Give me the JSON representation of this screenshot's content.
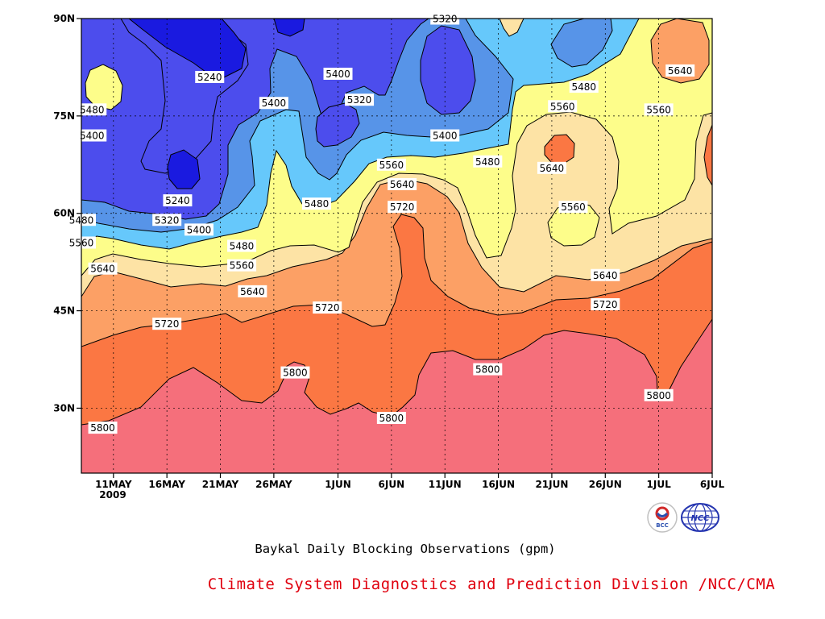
{
  "chart_data": {
    "type": "contour",
    "title": "Baykal Daily Blocking Observations (gpm)",
    "credit": "Climate System Diagnostics and Prediction Division /NCC/CMA",
    "year_label": "2009",
    "y_ticks": [
      {
        "value": 30,
        "label": "30N"
      },
      {
        "value": 45,
        "label": "45N"
      },
      {
        "value": 60,
        "label": "60N"
      },
      {
        "value": 75,
        "label": "75N"
      },
      {
        "value": 90,
        "label": "90N"
      }
    ],
    "x_ticks": [
      {
        "date": "2009-05-11",
        "label": "11MAY"
      },
      {
        "date": "2009-05-16",
        "label": "16MAY"
      },
      {
        "date": "2009-05-21",
        "label": "21MAY"
      },
      {
        "date": "2009-05-26",
        "label": "26MAY"
      },
      {
        "date": "2009-06-01",
        "label": "1JUN"
      },
      {
        "date": "2009-06-06",
        "label": "6JUN"
      },
      {
        "date": "2009-06-11",
        "label": "11JUN"
      },
      {
        "date": "2009-06-16",
        "label": "16JUN"
      },
      {
        "date": "2009-06-21",
        "label": "21JUN"
      },
      {
        "date": "2009-06-26",
        "label": "26JUN"
      },
      {
        "date": "2009-07-01",
        "label": "1JUL"
      },
      {
        "date": "2009-07-06",
        "label": "6JUL"
      }
    ],
    "xlim": [
      "2009-05-08",
      "2009-07-06"
    ],
    "ylim": [
      20,
      90
    ],
    "grid": true,
    "contour_levels": [
      5240,
      5320,
      5400,
      5480,
      5560,
      5640,
      5720,
      5800
    ],
    "level_colors": {
      "5800": "#f56f7b",
      "5720": "#fb7743",
      "5640": "#fca065",
      "5560": "#fde3a5",
      "5480": "#fdfd8a",
      "5400": "#66c8fb",
      "5320": "#5794e8",
      "5240": "#4c4ded",
      "below": "#1a1ae0"
    },
    "contour_labels": [
      {
        "value": 5240,
        "date": "2009-05-20",
        "lat": 81
      },
      {
        "value": 5240,
        "date": "2009-05-17",
        "lat": 62
      },
      {
        "value": 5320,
        "date": "2009-05-16",
        "lat": 59
      },
      {
        "value": 5320,
        "date": "2009-06-03",
        "lat": 77.5
      },
      {
        "value": 5320,
        "date": "2009-06-11",
        "lat": 90
      },
      {
        "value": 5400,
        "date": "2009-05-09",
        "lat": 72
      },
      {
        "value": 5400,
        "date": "2009-05-19",
        "lat": 57.5
      },
      {
        "value": 5400,
        "date": "2009-05-26",
        "lat": 77
      },
      {
        "value": 5400,
        "date": "2009-06-01",
        "lat": 81.5
      },
      {
        "value": 5400,
        "date": "2009-06-11",
        "lat": 72
      },
      {
        "value": 5480,
        "date": "2009-05-09",
        "lat": 76
      },
      {
        "value": 5480,
        "date": "2009-05-08",
        "lat": 59
      },
      {
        "value": 5480,
        "date": "2009-05-23",
        "lat": 55
      },
      {
        "value": 5480,
        "date": "2009-05-30",
        "lat": 61.5
      },
      {
        "value": 5480,
        "date": "2009-06-15",
        "lat": 68
      },
      {
        "value": 5480,
        "date": "2009-06-24",
        "lat": 79.5
      },
      {
        "value": 5560,
        "date": "2009-05-08",
        "lat": 55.5
      },
      {
        "value": 5560,
        "date": "2009-05-23",
        "lat": 52
      },
      {
        "value": 5560,
        "date": "2009-06-06",
        "lat": 67.5
      },
      {
        "value": 5560,
        "date": "2009-06-22",
        "lat": 76.5
      },
      {
        "value": 5560,
        "date": "2009-06-23",
        "lat": 61
      },
      {
        "value": 5560,
        "date": "2009-07-01",
        "lat": 76
      },
      {
        "value": 5640,
        "date": "2009-05-10",
        "lat": 51.5
      },
      {
        "value": 5640,
        "date": "2009-05-24",
        "lat": 48
      },
      {
        "value": 5640,
        "date": "2009-06-07",
        "lat": 64.5
      },
      {
        "value": 5640,
        "date": "2009-06-21",
        "lat": 67
      },
      {
        "value": 5640,
        "date": "2009-06-26",
        "lat": 50.5
      },
      {
        "value": 5640,
        "date": "2009-07-03",
        "lat": 82
      },
      {
        "value": 5720,
        "date": "2009-05-16",
        "lat": 43
      },
      {
        "value": 5720,
        "date": "2009-05-31",
        "lat": 45.5
      },
      {
        "value": 5720,
        "date": "2009-06-07",
        "lat": 61
      },
      {
        "value": 5720,
        "date": "2009-06-26",
        "lat": 46
      },
      {
        "value": 5800,
        "date": "2009-05-10",
        "lat": 27
      },
      {
        "value": 5800,
        "date": "2009-05-28",
        "lat": 35.5
      },
      {
        "value": 5800,
        "date": "2009-06-06",
        "lat": 28.5
      },
      {
        "value": 5800,
        "date": "2009-06-15",
        "lat": 36
      },
      {
        "value": 5800,
        "date": "2009-07-01",
        "lat": 32
      }
    ]
  }
}
